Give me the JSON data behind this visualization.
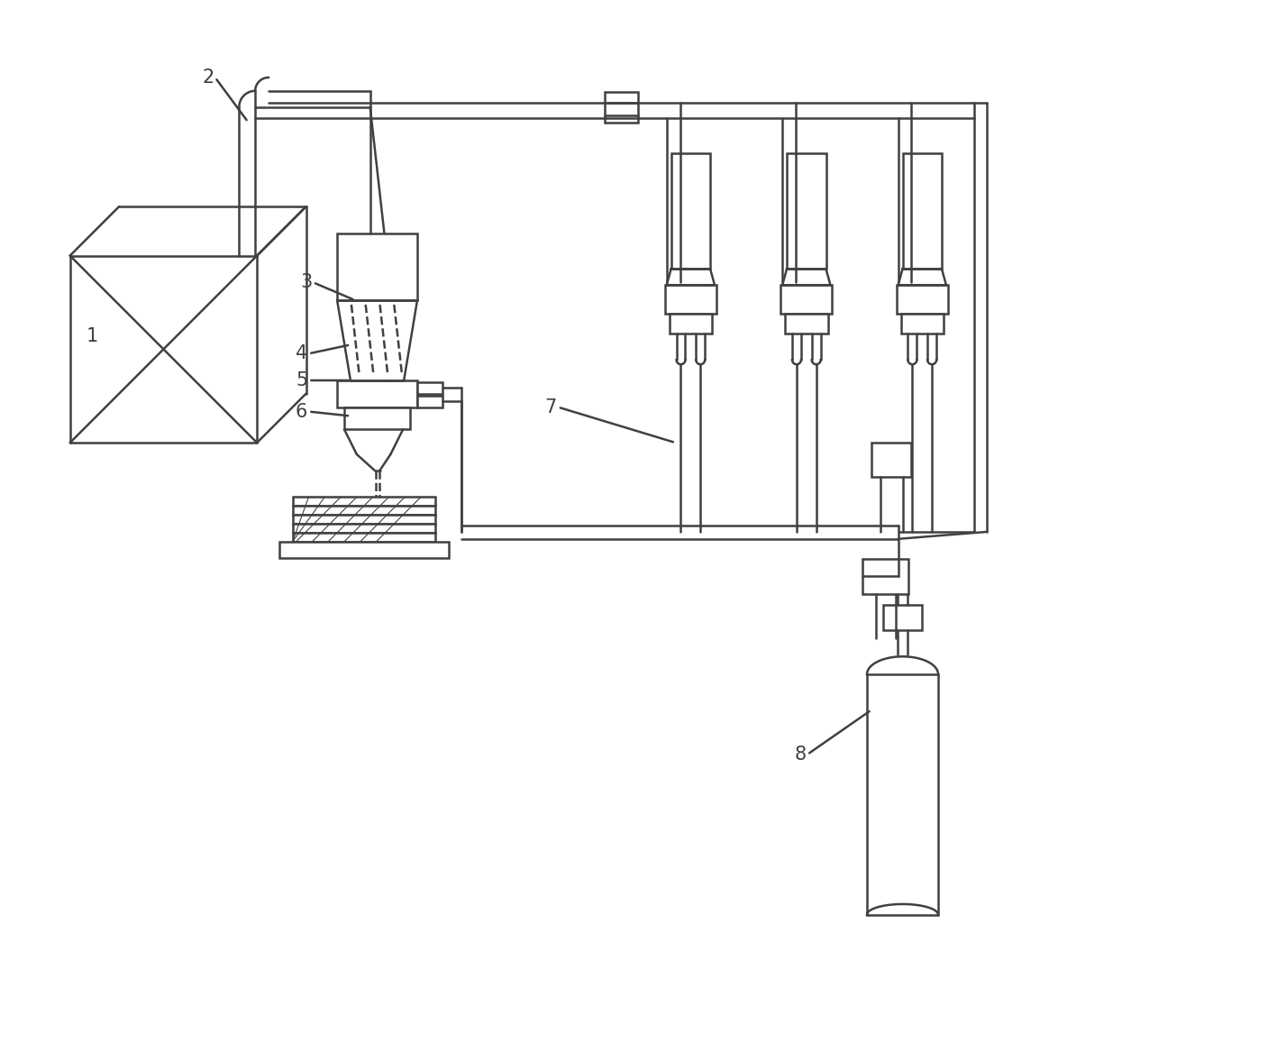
{
  "background_color": "#ffffff",
  "line_color": "#404040",
  "line_width": 1.8,
  "label_fontsize": 15
}
